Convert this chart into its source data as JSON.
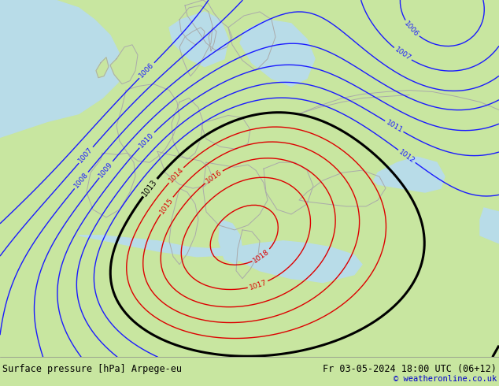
{
  "title_left": "Surface pressure [hPa] Arpege-eu",
  "title_right": "Fr 03-05-2024 18:00 UTC (06+12)",
  "copyright": "© weatheronline.co.uk",
  "bg_color": "#c8e6a0",
  "bottom_bar_color": "#c8e6a0",
  "fig_width": 6.34,
  "fig_height": 4.9,
  "dpi": 100
}
